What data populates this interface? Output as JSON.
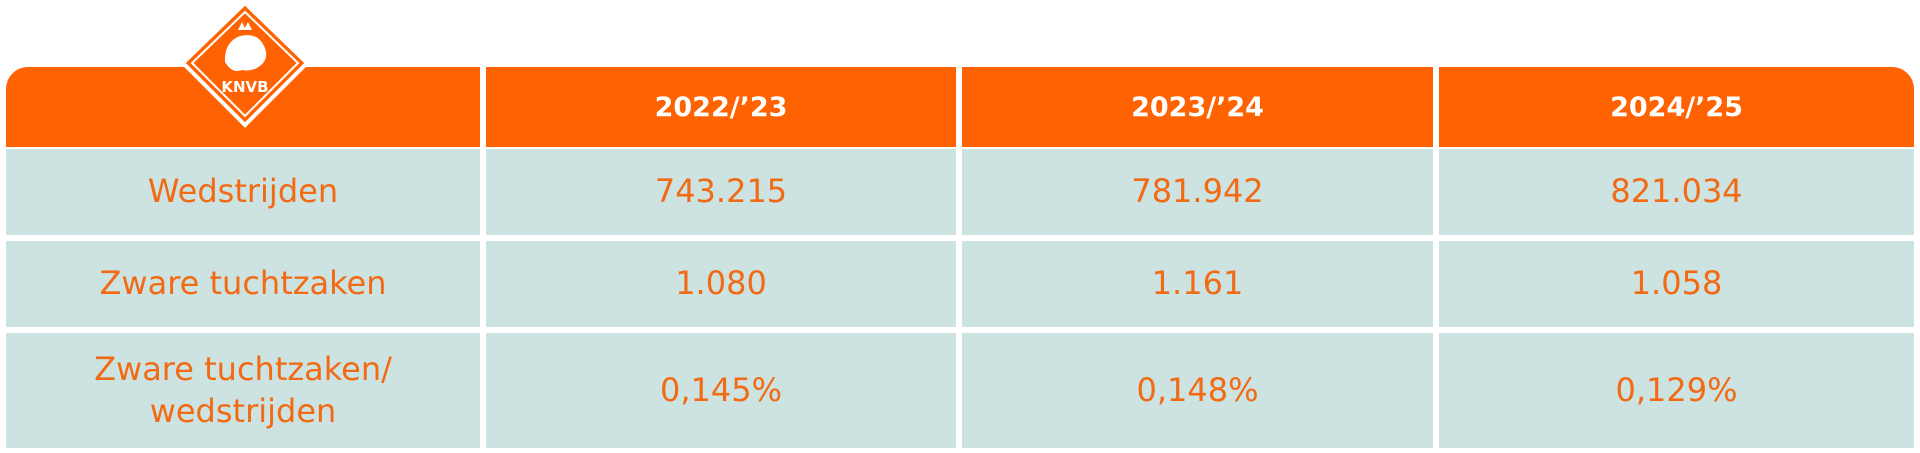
{
  "logo": {
    "text": "KNVB"
  },
  "table": {
    "columns": [
      "2022/’23",
      "2023/’24",
      "2024/’25"
    ],
    "rows": [
      {
        "label": "Wedstrijden",
        "values": [
          "743.215",
          "781.942",
          "821.034"
        ]
      },
      {
        "label": "Zware tuchtzaken",
        "values": [
          "1.080",
          "1.161",
          "1.058"
        ]
      },
      {
        "label": "Zware tuchtzaken/ wedstrijden",
        "values": [
          "0,145%",
          "0,148%",
          "0,129%"
        ]
      }
    ]
  }
}
